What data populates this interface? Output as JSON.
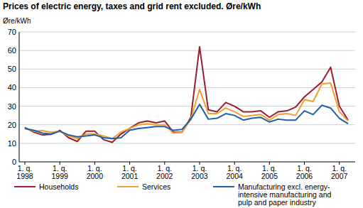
{
  "chart_data": {
    "type": "line",
    "title": "Prices of electric energy, taxes and grid rent excluded. Øre/kWh",
    "y_label": "Øre/kWh",
    "categories": [
      "1. q. 1998",
      null,
      null,
      null,
      "1. q. 1999",
      null,
      null,
      null,
      "1. q. 2000",
      null,
      null,
      null,
      "1. q. 2001",
      null,
      null,
      null,
      "1. q. 2002",
      null,
      null,
      null,
      "1. q. 2003",
      null,
      null,
      null,
      "1. q. 2004",
      null,
      null,
      null,
      "1. q. 2005",
      null,
      null,
      null,
      "1. q. 2006",
      null,
      null,
      null,
      "1. q. 2007",
      null
    ],
    "series": [
      {
        "name": "Households",
        "color": "#9b1c31",
        "values": [
          18.5,
          16,
          14.5,
          14.8,
          17,
          13,
          11,
          16.5,
          16.5,
          12,
          10.5,
          15,
          18,
          21,
          22,
          21,
          22,
          16,
          16,
          24,
          62,
          28,
          27,
          32,
          30,
          27,
          27,
          27.5,
          24,
          27,
          27.5,
          29.5,
          35,
          39,
          43,
          51,
          30,
          22.5
        ]
      },
      {
        "name": "Services",
        "color": "#f0a030",
        "values": [
          18,
          16.5,
          16.8,
          16,
          16.5,
          14,
          12.5,
          15,
          15,
          14,
          12.5,
          16,
          18,
          20,
          20.5,
          20,
          20,
          15.5,
          16,
          23,
          39,
          26,
          26,
          29,
          27,
          24.5,
          25,
          25.5,
          22.5,
          25.5,
          26,
          25,
          33.5,
          32.5,
          42,
          42.5,
          27,
          22
        ]
      },
      {
        "name": "Manufacturing excl. energy-intensive manufacturing and pulp and paper industry",
        "color": "#1f5fa8",
        "values": [
          18,
          17,
          15.5,
          15,
          16.5,
          14.5,
          13.5,
          14,
          14.5,
          13,
          12.5,
          13,
          17,
          18,
          18.5,
          19,
          19,
          17,
          17.5,
          23,
          31,
          23,
          23.5,
          26,
          25,
          22.5,
          23.5,
          24,
          21.5,
          23,
          22.5,
          22.5,
          27.5,
          25.5,
          30.5,
          29,
          23.5,
          20.5
        ]
      }
    ],
    "ylim": [
      0,
      70
    ],
    "yticks": [
      0,
      10,
      20,
      30,
      40,
      50,
      60,
      70
    ],
    "grid": true,
    "legend": "bottom"
  }
}
